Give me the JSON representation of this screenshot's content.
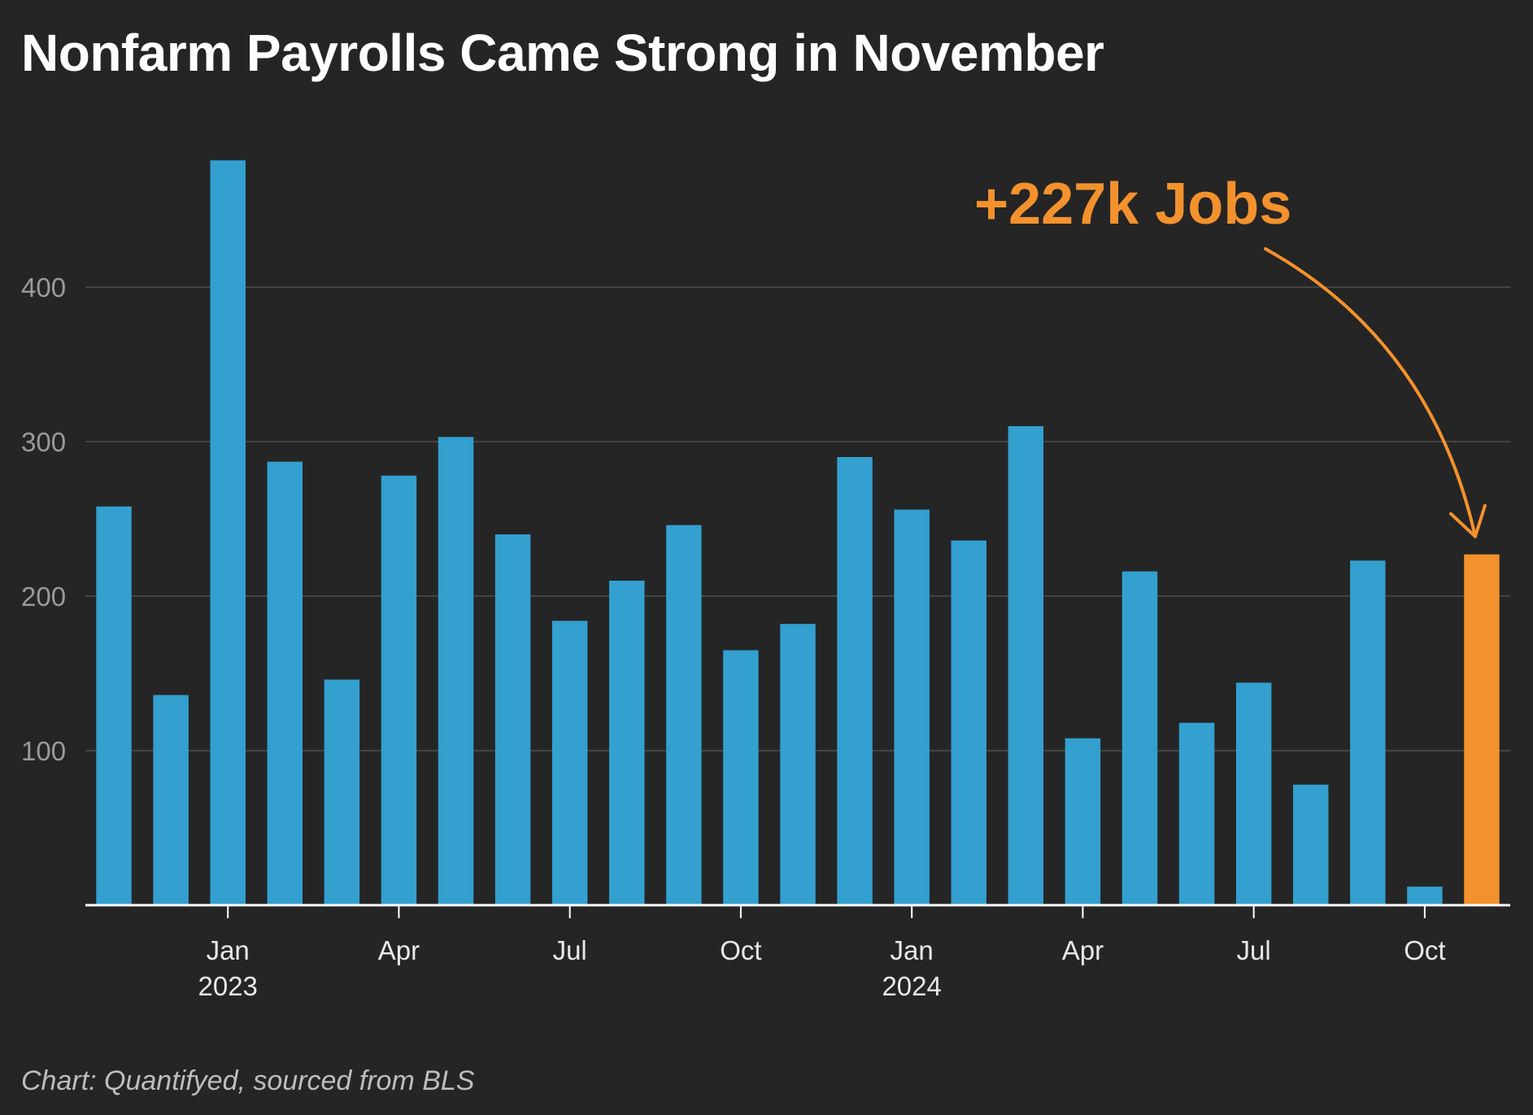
{
  "title": "Nonfarm Payrolls Came Strong in November",
  "footer": "Chart: Quantifyed, sourced from BLS",
  "colors": {
    "background": "#252525",
    "bar": "#33a0d0",
    "highlight": "#f3922d",
    "grid": "#444444",
    "axis": "#ffffff"
  },
  "chart_data": {
    "type": "bar",
    "title": "Nonfarm Payrolls Came Strong in November",
    "xlabel": "",
    "ylabel": "",
    "ylim": [
      0,
      500
    ],
    "yticks": [
      100,
      200,
      300,
      400
    ],
    "grid": true,
    "categories": [
      "2022-11",
      "2022-12",
      "2023-01",
      "2023-02",
      "2023-03",
      "2023-04",
      "2023-05",
      "2023-06",
      "2023-07",
      "2023-08",
      "2023-09",
      "2023-10",
      "2023-11",
      "2023-12",
      "2024-01",
      "2024-02",
      "2024-03",
      "2024-04",
      "2024-05",
      "2024-06",
      "2024-07",
      "2024-08",
      "2024-09",
      "2024-10",
      "2024-11"
    ],
    "values": [
      258,
      136,
      482,
      287,
      146,
      278,
      303,
      240,
      184,
      210,
      246,
      165,
      182,
      290,
      256,
      236,
      310,
      108,
      216,
      118,
      144,
      78,
      223,
      12,
      227
    ],
    "highlight_category": "2024-11",
    "x_tick_labels": [
      {
        "category": "2023-01",
        "label": "Jan",
        "sublabel": "2023"
      },
      {
        "category": "2023-04",
        "label": "Apr",
        "sublabel": ""
      },
      {
        "category": "2023-07",
        "label": "Jul",
        "sublabel": ""
      },
      {
        "category": "2023-10",
        "label": "Oct",
        "sublabel": ""
      },
      {
        "category": "2024-01",
        "label": "Jan",
        "sublabel": "2024"
      },
      {
        "category": "2024-04",
        "label": "Apr",
        "sublabel": ""
      },
      {
        "category": "2024-07",
        "label": "Jul",
        "sublabel": ""
      },
      {
        "category": "2024-10",
        "label": "Oct",
        "sublabel": ""
      }
    ],
    "annotation": {
      "text": "+227k Jobs",
      "target_category": "2024-11"
    }
  }
}
